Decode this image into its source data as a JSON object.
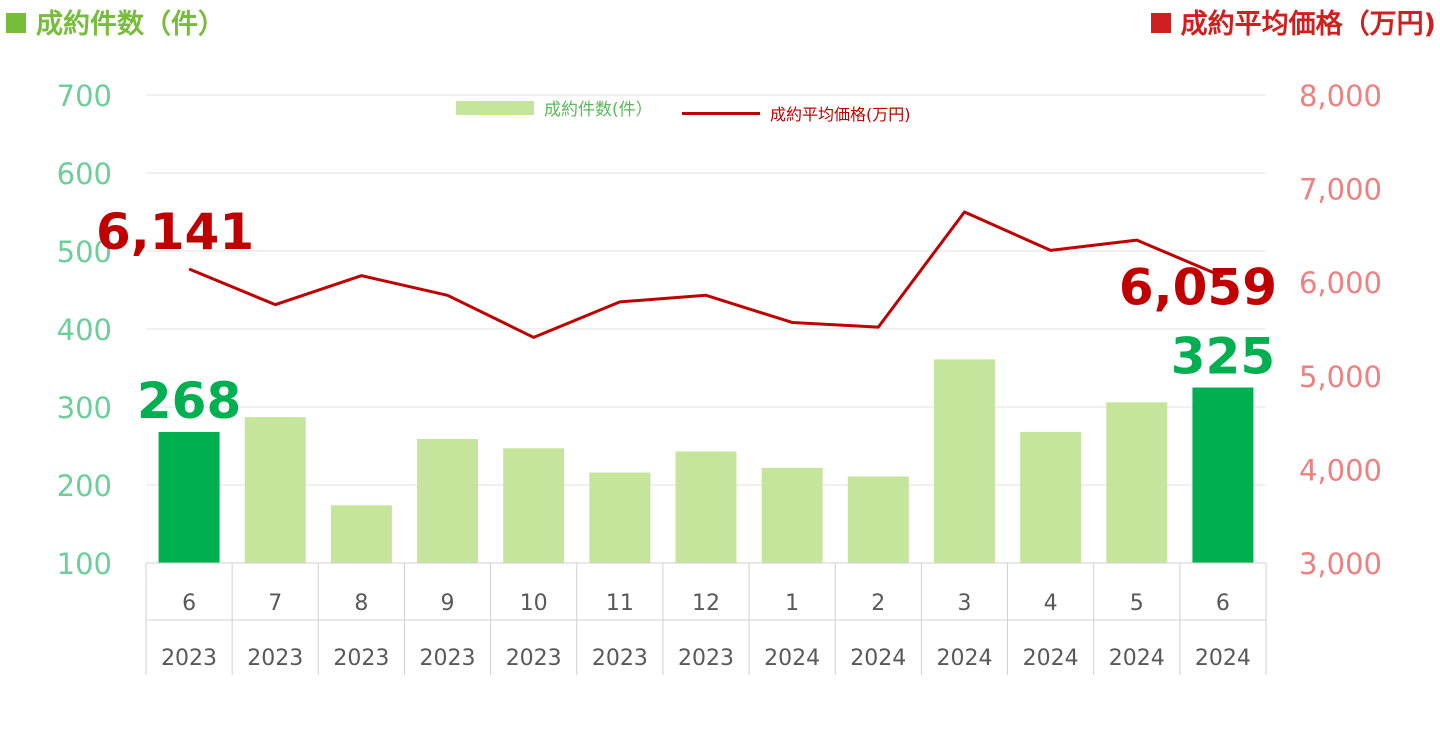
{
  "titles": {
    "left": "成約件数（件）",
    "right": "成約平均価格（万円)"
  },
  "legend": {
    "bar_label": "成約件数(件）",
    "line_label": "成約平均価格(万円)"
  },
  "colors": {
    "bar": "#c4e59b",
    "bar_highlight": "#00b050",
    "line": "#c00000",
    "left_axis": "#6ccf9a",
    "right_axis": "#f08080",
    "title_green": "#77bc3a",
    "title_red": "#d01f1f",
    "grid": "#e0e0e0"
  },
  "chart_data": {
    "type": "bar",
    "categories": [
      "6",
      "7",
      "8",
      "9",
      "10",
      "11",
      "12",
      "1",
      "2",
      "3",
      "4",
      "5",
      "6"
    ],
    "years": [
      "2023",
      "2023",
      "2023",
      "2023",
      "2023",
      "2023",
      "2023",
      "2024",
      "2024",
      "2024",
      "2024",
      "2024",
      "2024"
    ],
    "series": [
      {
        "name": "成約件数(件）",
        "type": "bar",
        "axis": "left",
        "values": [
          268,
          287,
          174,
          259,
          247,
          216,
          243,
          222,
          211,
          361,
          268,
          306,
          325
        ],
        "highlight": [
          0,
          12
        ]
      },
      {
        "name": "成約平均価格(万円)",
        "type": "line",
        "axis": "right",
        "values": [
          6141,
          5760,
          6070,
          5860,
          5410,
          5790,
          5860,
          5570,
          5520,
          6750,
          6340,
          6450,
          6059
        ]
      }
    ],
    "y_left": {
      "min": 100,
      "max": 700,
      "ticks": [
        "100",
        "200",
        "300",
        "400",
        "500",
        "600",
        "700"
      ]
    },
    "y_right": {
      "min": 3000,
      "max": 8000,
      "ticks": [
        "3,000",
        "4,000",
        "5,000",
        "6,000",
        "7,000",
        "8,000"
      ]
    },
    "annotations": [
      {
        "text": "268",
        "series": 0,
        "index": 0,
        "color": "#00b050"
      },
      {
        "text": "325",
        "series": 0,
        "index": 12,
        "color": "#00b050"
      },
      {
        "text": "6,141",
        "series": 1,
        "index": 0,
        "color": "#c00000"
      },
      {
        "text": "6,059",
        "series": 1,
        "index": 12,
        "color": "#c00000"
      }
    ],
    "grid": true,
    "legend_position": "top-center"
  }
}
